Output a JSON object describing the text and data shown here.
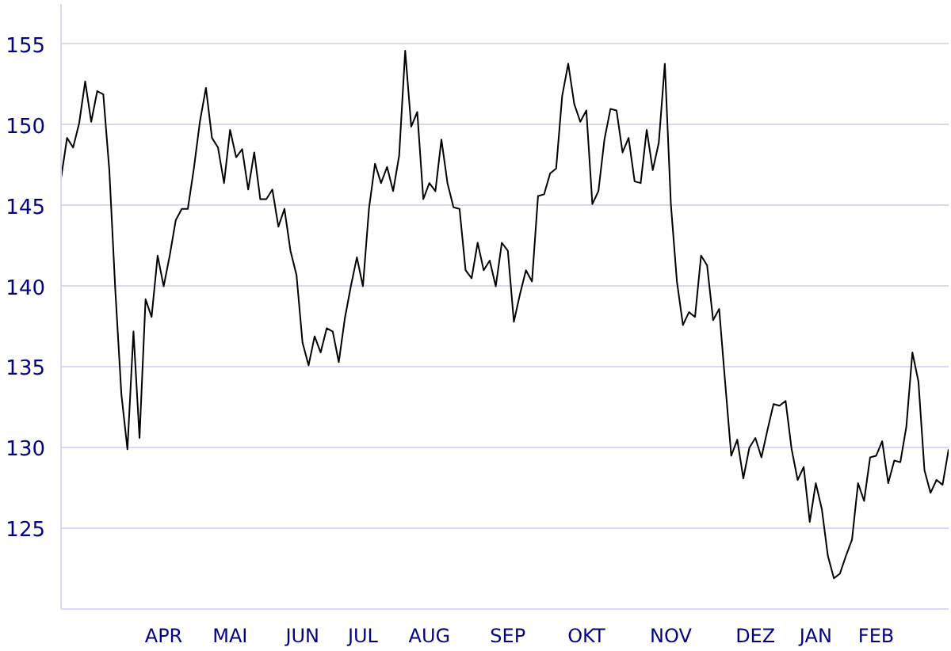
{
  "chart_data": {
    "type": "line",
    "categories": [
      null,
      null,
      null,
      null,
      null,
      null,
      null,
      null,
      null,
      null,
      null,
      null,
      null,
      null,
      null,
      null,
      null,
      "APR",
      null,
      null,
      null,
      null,
      null,
      null,
      null,
      null,
      null,
      null,
      "MAI",
      null,
      null,
      null,
      null,
      null,
      null,
      null,
      null,
      null,
      null,
      null,
      "JUN",
      null,
      null,
      null,
      null,
      null,
      null,
      null,
      null,
      null,
      "JUL",
      null,
      null,
      null,
      null,
      null,
      null,
      null,
      null,
      null,
      null,
      "AUG",
      null,
      null,
      null,
      null,
      null,
      null,
      null,
      null,
      null,
      null,
      null,
      null,
      "SEP",
      null,
      null,
      null,
      null,
      null,
      null,
      null,
      null,
      null,
      null,
      null,
      null,
      "OKT",
      null,
      null,
      null,
      null,
      null,
      null,
      null,
      null,
      null,
      null,
      null,
      null,
      null,
      "NOV",
      null,
      null,
      null,
      null,
      null,
      null,
      null,
      null,
      null,
      null,
      null,
      null,
      null,
      "DEZ",
      null,
      null,
      null,
      null,
      null,
      null,
      null,
      null,
      null,
      "JAN",
      null,
      null,
      null,
      null,
      null,
      null,
      null,
      null,
      null,
      "FEB",
      null,
      null,
      null,
      null,
      null,
      null,
      null,
      null,
      null,
      null,
      null,
      null
    ],
    "values": [
      146.7,
      149.2,
      148.6,
      150.1,
      152.7,
      150.2,
      152.1,
      151.9,
      147.2,
      139.7,
      133.3,
      129.9,
      137.2,
      130.6,
      139.2,
      138.1,
      141.9,
      140.0,
      141.9,
      144.1,
      144.8,
      144.8,
      147.3,
      150.2,
      152.3,
      149.2,
      148.6,
      146.4,
      149.7,
      148.0,
      148.5,
      146.0,
      148.3,
      145.4,
      145.4,
      146.0,
      143.7,
      144.8,
      142.2,
      140.7,
      136.5,
      135.1,
      136.9,
      135.9,
      137.4,
      137.2,
      135.3,
      138.0,
      140.0,
      141.8,
      140.0,
      144.8,
      147.6,
      146.4,
      147.4,
      145.9,
      148.1,
      154.6,
      149.9,
      150.8,
      145.4,
      146.4,
      145.9,
      149.1,
      146.4,
      144.9,
      144.8,
      141.0,
      140.5,
      142.7,
      141.0,
      141.6,
      140.0,
      142.7,
      142.2,
      137.8,
      139.5,
      141.0,
      140.3,
      145.6,
      145.7,
      147.0,
      147.3,
      151.8,
      153.8,
      151.3,
      150.2,
      150.9,
      145.1,
      145.9,
      149.1,
      151.0,
      150.9,
      148.3,
      149.2,
      146.5,
      146.4,
      149.7,
      147.2,
      148.9,
      153.8,
      145.1,
      140.3,
      137.6,
      138.4,
      138.1,
      141.9,
      141.3,
      137.9,
      138.6,
      134.0,
      129.5,
      130.5,
      128.1,
      130.0,
      130.6,
      129.4,
      131.1,
      132.7,
      132.6,
      132.9,
      129.9,
      128.0,
      128.8,
      125.4,
      127.8,
      126.2,
      123.3,
      121.9,
      122.2,
      123.3,
      124.3,
      127.8,
      126.7,
      129.4,
      129.5,
      130.4,
      127.8,
      129.2,
      129.1,
      131.3,
      135.9,
      134.1,
      128.6,
      127.2,
      128.0,
      127.7,
      129.9
    ],
    "color": "#000000",
    "ylim": [
      120,
      157.5
    ],
    "yticks": [
      125,
      130,
      135,
      140,
      145,
      150,
      155
    ],
    "grid": "y"
  }
}
